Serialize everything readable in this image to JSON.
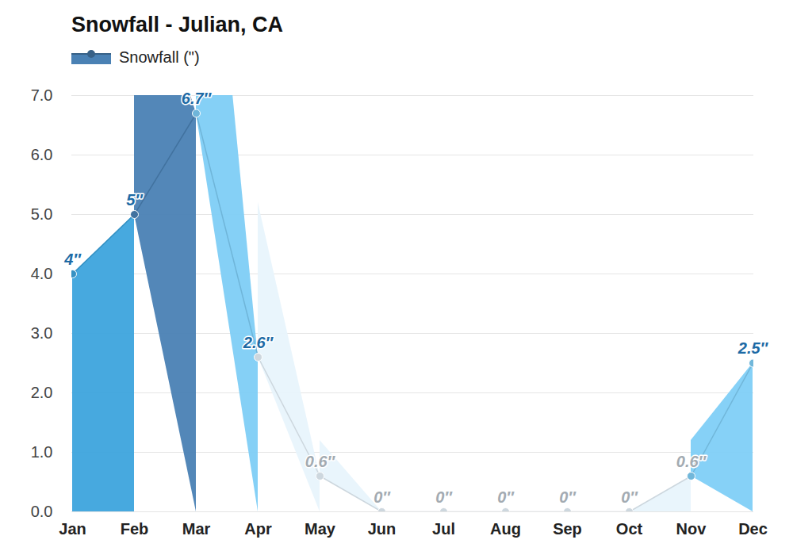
{
  "chart_data": {
    "type": "area",
    "title": "Snowfall - Julian, CA",
    "categories": [
      "Jan",
      "Feb",
      "Mar",
      "Apr",
      "May",
      "Jun",
      "Jul",
      "Aug",
      "Sep",
      "Oct",
      "Nov",
      "Dec"
    ],
    "series": [
      {
        "name": "Snowfall (\")",
        "values": [
          4,
          5,
          6.7,
          2.6,
          0.6,
          0,
          0,
          0,
          0,
          0,
          0.6,
          2.5
        ],
        "value_labels": [
          "4″",
          "5″",
          "6.7″",
          "2.6″",
          "0.6″",
          "0″",
          "0″",
          "0″",
          "0″",
          "0″",
          "0.6″",
          "2.5″"
        ],
        "colors": [
          "#3da4dd",
          "#4a81b4",
          "#7ecdf6",
          "#e8f4fc",
          "#e8f4fc",
          "#e8f4fc",
          "#e8f4fc",
          "#e8f4fc",
          "#e8f4fc",
          "#e8f4fc",
          "#80cff7",
          "#80cff7"
        ]
      }
    ],
    "ylim": [
      0,
      7
    ],
    "yticks": [
      0,
      1,
      2,
      3,
      4,
      5,
      6,
      7
    ],
    "grid": true,
    "legend": "top-left",
    "data_labels": true
  }
}
